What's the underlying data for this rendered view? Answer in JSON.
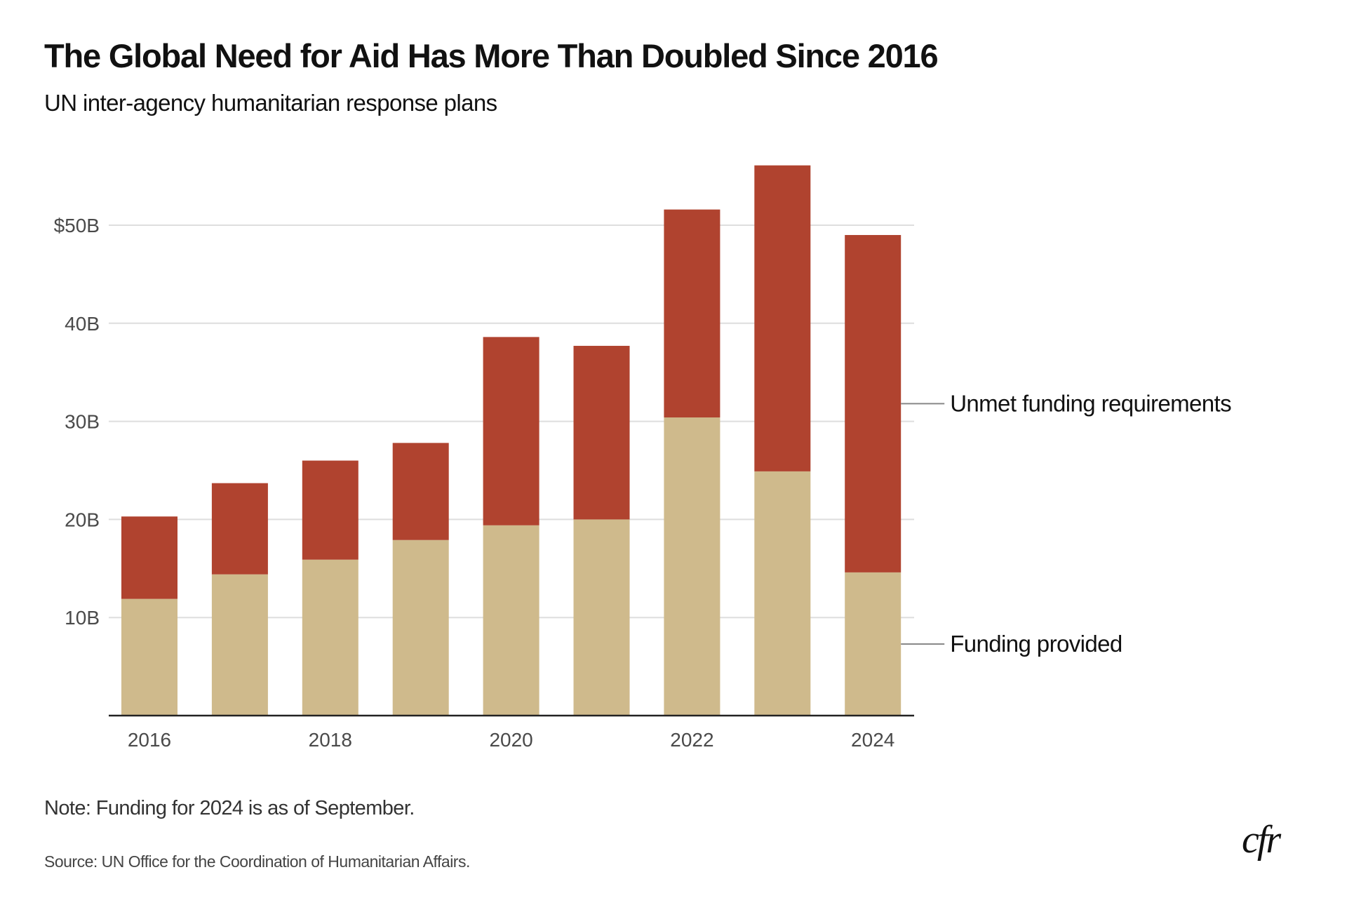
{
  "header": {
    "title": "The Global Need for Aid Has More Than Doubled Since 2016",
    "subtitle": "UN inter-agency humanitarian response plans"
  },
  "footer": {
    "note": "Note: Funding for 2024 is as of September.",
    "source": "Source: UN Office for the Coordination of Humanitarian Affairs.",
    "logo": "cfr"
  },
  "chart_data": {
    "type": "bar",
    "stacked": true,
    "title": "The Global Need for Aid Has More Than Doubled Since 2016",
    "subtitle": "UN inter-agency humanitarian response plans",
    "xlabel": "",
    "ylabel": "",
    "units": "billions USD",
    "categories": [
      "2016",
      "2017",
      "2018",
      "2019",
      "2020",
      "2021",
      "2022",
      "2023",
      "2024"
    ],
    "x_tick_labels": [
      "2016",
      "2018",
      "2020",
      "2022",
      "2024"
    ],
    "y_ticks": [
      10,
      20,
      30,
      40,
      50
    ],
    "y_tick_labels": [
      "10B",
      "20B",
      "30B",
      "40B",
      "$50B"
    ],
    "ylim": [
      0,
      58
    ],
    "grid": true,
    "legend_placement": "right (direct labels)",
    "series": [
      {
        "name": "Funding provided",
        "color": "#cfba8c",
        "values": [
          11.9,
          14.4,
          15.9,
          17.9,
          19.4,
          20.0,
          30.4,
          24.9,
          14.6
        ]
      },
      {
        "name": "Unmet funding requirements",
        "color": "#b0432f",
        "values": [
          8.4,
          9.3,
          10.1,
          9.9,
          19.2,
          17.7,
          21.2,
          31.2,
          34.4
        ]
      }
    ],
    "totals": [
      20.3,
      23.7,
      26.0,
      27.8,
      38.6,
      37.7,
      51.6,
      56.1,
      49.0
    ]
  }
}
